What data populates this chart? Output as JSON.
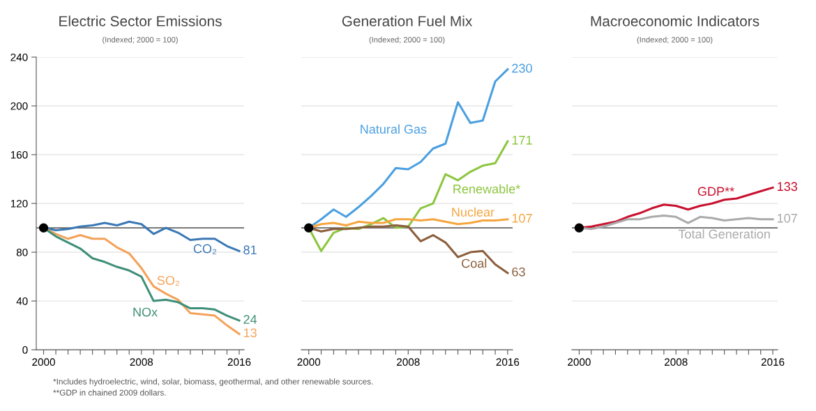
{
  "chart_data": [
    {
      "type": "line",
      "title": "Electric Sector Emissions",
      "subtitle": "(Indexed; 2000 = 100)",
      "x": [
        2000,
        2001,
        2002,
        2003,
        2004,
        2005,
        2006,
        2007,
        2008,
        2009,
        2010,
        2011,
        2012,
        2013,
        2014,
        2015,
        2016
      ],
      "series": [
        {
          "name": "CO₂",
          "color": "#3a78b5",
          "values": [
            100,
            98,
            99,
            101,
            102,
            104,
            102,
            105,
            103,
            95,
            100,
            96,
            90,
            91,
            91,
            85,
            81
          ],
          "value_labels": [
            null,
            null,
            null,
            null,
            null,
            null,
            null,
            null,
            null,
            null,
            null,
            null,
            null,
            null,
            null,
            null,
            "81"
          ]
        },
        {
          "name": "SO₂",
          "color": "#f4a259",
          "values": [
            100,
            95,
            91,
            94,
            91,
            91,
            84,
            79,
            67,
            52,
            46,
            41,
            30,
            29,
            28,
            20,
            13
          ],
          "value_labels": [
            null,
            null,
            null,
            null,
            null,
            null,
            null,
            null,
            null,
            null,
            null,
            null,
            null,
            null,
            null,
            null,
            "13"
          ]
        },
        {
          "name": "NOx",
          "color": "#3f8f78",
          "values": [
            100,
            93,
            88,
            83,
            75,
            72,
            68,
            65,
            60,
            40,
            41,
            39,
            34,
            34,
            33,
            28,
            24
          ],
          "value_labels": [
            null,
            null,
            null,
            null,
            null,
            null,
            null,
            null,
            null,
            null,
            null,
            null,
            null,
            null,
            null,
            null,
            "24"
          ]
        },
        {
          "type": "scatter",
          "color": "#000000",
          "values": [
            100,
            null,
            null,
            null,
            null,
            null,
            null,
            null,
            null,
            null,
            null,
            null,
            null,
            null,
            null,
            null,
            null
          ]
        }
      ],
      "xlim": [
        1999.4,
        2016.4
      ],
      "ylim": [
        0,
        240
      ],
      "xticks": [
        2000,
        {
          "value": 2001,
          "label": null
        },
        {
          "value": 2002,
          "label": null
        },
        {
          "value": 2003,
          "label": null
        },
        {
          "value": 2004,
          "label": null
        },
        {
          "value": 2005,
          "label": null
        },
        {
          "value": 2006,
          "label": null
        },
        {
          "value": 2007,
          "label": null
        },
        2008,
        {
          "value": 2009,
          "label": null
        },
        {
          "value": 2010,
          "label": null
        },
        {
          "value": 2011,
          "label": null
        },
        {
          "value": 2012,
          "label": null
        },
        {
          "value": 2013,
          "label": null
        },
        {
          "value": 2014,
          "label": null
        },
        {
          "value": 2015,
          "label": null
        },
        2016
      ],
      "yticks": [
        0,
        40,
        80,
        120,
        160,
        200,
        240
      ],
      "ref_lines": [
        {
          "axis": "y",
          "value": 100,
          "color": "#666666"
        }
      ],
      "grid": "y",
      "legend": false,
      "annotations": [
        "*Includes hydroelectric, wind, solar, biomass, geothermal, and other renewable sources.",
        "**GDP in chained 2009 dollars."
      ]
    },
    {
      "type": "line",
      "title": "Generation Fuel Mix",
      "subtitle": "(Indexed; 2000 = 100)",
      "x": [
        2000,
        2001,
        2002,
        2003,
        2004,
        2005,
        2006,
        2007,
        2008,
        2009,
        2010,
        2011,
        2012,
        2013,
        2014,
        2015,
        2016
      ],
      "series": [
        {
          "name": "Natural Gas",
          "color": "#4a9fe0",
          "values": [
            100,
            107,
            115,
            109,
            117,
            126,
            136,
            149,
            148,
            154,
            165,
            169,
            203,
            186,
            188,
            220,
            230
          ],
          "value_labels": [
            null,
            null,
            null,
            null,
            null,
            null,
            null,
            null,
            null,
            null,
            null,
            null,
            null,
            null,
            null,
            null,
            "230"
          ]
        },
        {
          "name": "Renewable*",
          "color": "#8cc63f",
          "values": [
            100,
            81,
            96,
            100,
            99,
            103,
            108,
            100,
            101,
            116,
            120,
            144,
            139,
            146,
            151,
            153,
            171
          ],
          "value_labels": [
            null,
            null,
            null,
            null,
            null,
            null,
            null,
            null,
            null,
            null,
            null,
            null,
            null,
            null,
            null,
            null,
            "171"
          ]
        },
        {
          "name": "Nuclear",
          "color": "#f5a540",
          "values": [
            100,
            103,
            104,
            102,
            105,
            104,
            104,
            107,
            107,
            106,
            107,
            105,
            103,
            104,
            106,
            106,
            107
          ],
          "value_labels": [
            null,
            null,
            null,
            null,
            null,
            null,
            null,
            null,
            null,
            null,
            null,
            null,
            null,
            null,
            null,
            null,
            "107"
          ]
        },
        {
          "name": "Coal",
          "color": "#8b5e3c",
          "values": [
            100,
            97,
            99,
            99,
            100,
            101,
            101,
            102,
            101,
            89,
            94,
            88,
            76,
            80,
            81,
            70,
            63
          ],
          "value_labels": [
            null,
            null,
            null,
            null,
            null,
            null,
            null,
            null,
            null,
            null,
            null,
            null,
            null,
            null,
            null,
            null,
            "63"
          ]
        },
        {
          "type": "scatter",
          "color": "#000000",
          "values": [
            100,
            null,
            null,
            null,
            null,
            null,
            null,
            null,
            null,
            null,
            null,
            null,
            null,
            null,
            null,
            null,
            null
          ]
        }
      ],
      "xlim": [
        1999.4,
        2016.4
      ],
      "ylim": [
        0,
        240
      ],
      "xticks": [
        2000,
        {
          "value": 2001,
          "label": null
        },
        {
          "value": 2002,
          "label": null
        },
        {
          "value": 2003,
          "label": null
        },
        {
          "value": 2004,
          "label": null
        },
        {
          "value": 2005,
          "label": null
        },
        {
          "value": 2006,
          "label": null
        },
        {
          "value": 2007,
          "label": null
        },
        2008,
        {
          "value": 2009,
          "label": null
        },
        {
          "value": 2010,
          "label": null
        },
        {
          "value": 2011,
          "label": null
        },
        {
          "value": 2012,
          "label": null
        },
        {
          "value": 2013,
          "label": null
        },
        {
          "value": 2014,
          "label": null
        },
        {
          "value": 2015,
          "label": null
        },
        2016
      ],
      "yticks": [
        0,
        40,
        80,
        120,
        160,
        200,
        240
      ],
      "ref_lines": [
        {
          "axis": "y",
          "value": 100,
          "color": "#666666"
        }
      ],
      "grid": "y",
      "legend": false,
      "tick_labels": "x"
    },
    {
      "type": "line",
      "title": "Macroeconomic Indicators",
      "subtitle": "(Indexed; 2000 = 100)",
      "x": [
        2000,
        2001,
        2002,
        2003,
        2004,
        2005,
        2006,
        2007,
        2008,
        2009,
        2010,
        2011,
        2012,
        2013,
        2014,
        2015,
        2016
      ],
      "series": [
        {
          "name": "GDP**",
          "color": "#c8102e",
          "values": [
            100,
            101,
            103,
            105,
            109,
            112,
            116,
            119,
            118,
            115,
            118,
            120,
            123,
            124,
            127,
            130,
            133
          ],
          "value_labels": [
            null,
            null,
            null,
            null,
            null,
            null,
            null,
            null,
            null,
            null,
            null,
            null,
            null,
            null,
            null,
            null,
            "133"
          ]
        },
        {
          "name": "Total Generation",
          "color": "#aaaaaa",
          "values": [
            100,
            99,
            101,
            104,
            107,
            107,
            109,
            110,
            109,
            104,
            109,
            108,
            106,
            107,
            108,
            107,
            107
          ],
          "value_labels": [
            null,
            null,
            null,
            null,
            null,
            null,
            null,
            null,
            null,
            null,
            null,
            null,
            null,
            null,
            null,
            null,
            "107"
          ]
        },
        {
          "type": "scatter",
          "color": "#000000",
          "values": [
            100,
            null,
            null,
            null,
            null,
            null,
            null,
            null,
            null,
            null,
            null,
            null,
            null,
            null,
            null,
            null,
            null
          ]
        }
      ],
      "xlim": [
        1999.4,
        2016.4
      ],
      "ylim": [
        0,
        240
      ],
      "xticks": [
        2000,
        {
          "value": 2001,
          "label": null
        },
        {
          "value": 2002,
          "label": null
        },
        {
          "value": 2003,
          "label": null
        },
        {
          "value": 2004,
          "label": null
        },
        {
          "value": 2005,
          "label": null
        },
        {
          "value": 2006,
          "label": null
        },
        {
          "value": 2007,
          "label": null
        },
        2008,
        {
          "value": 2009,
          "label": null
        },
        {
          "value": 2010,
          "label": null
        },
        {
          "value": 2011,
          "label": null
        },
        {
          "value": 2012,
          "label": null
        },
        {
          "value": 2013,
          "label": null
        },
        {
          "value": 2014,
          "label": null
        },
        {
          "value": 2015,
          "label": null
        },
        2016
      ],
      "yticks": [
        0,
        40,
        80,
        120,
        160,
        200,
        240
      ],
      "ref_lines": [
        {
          "axis": "y",
          "value": 100,
          "color": "#666666"
        }
      ],
      "grid": "y",
      "legend": false,
      "tick_labels": "x"
    }
  ]
}
